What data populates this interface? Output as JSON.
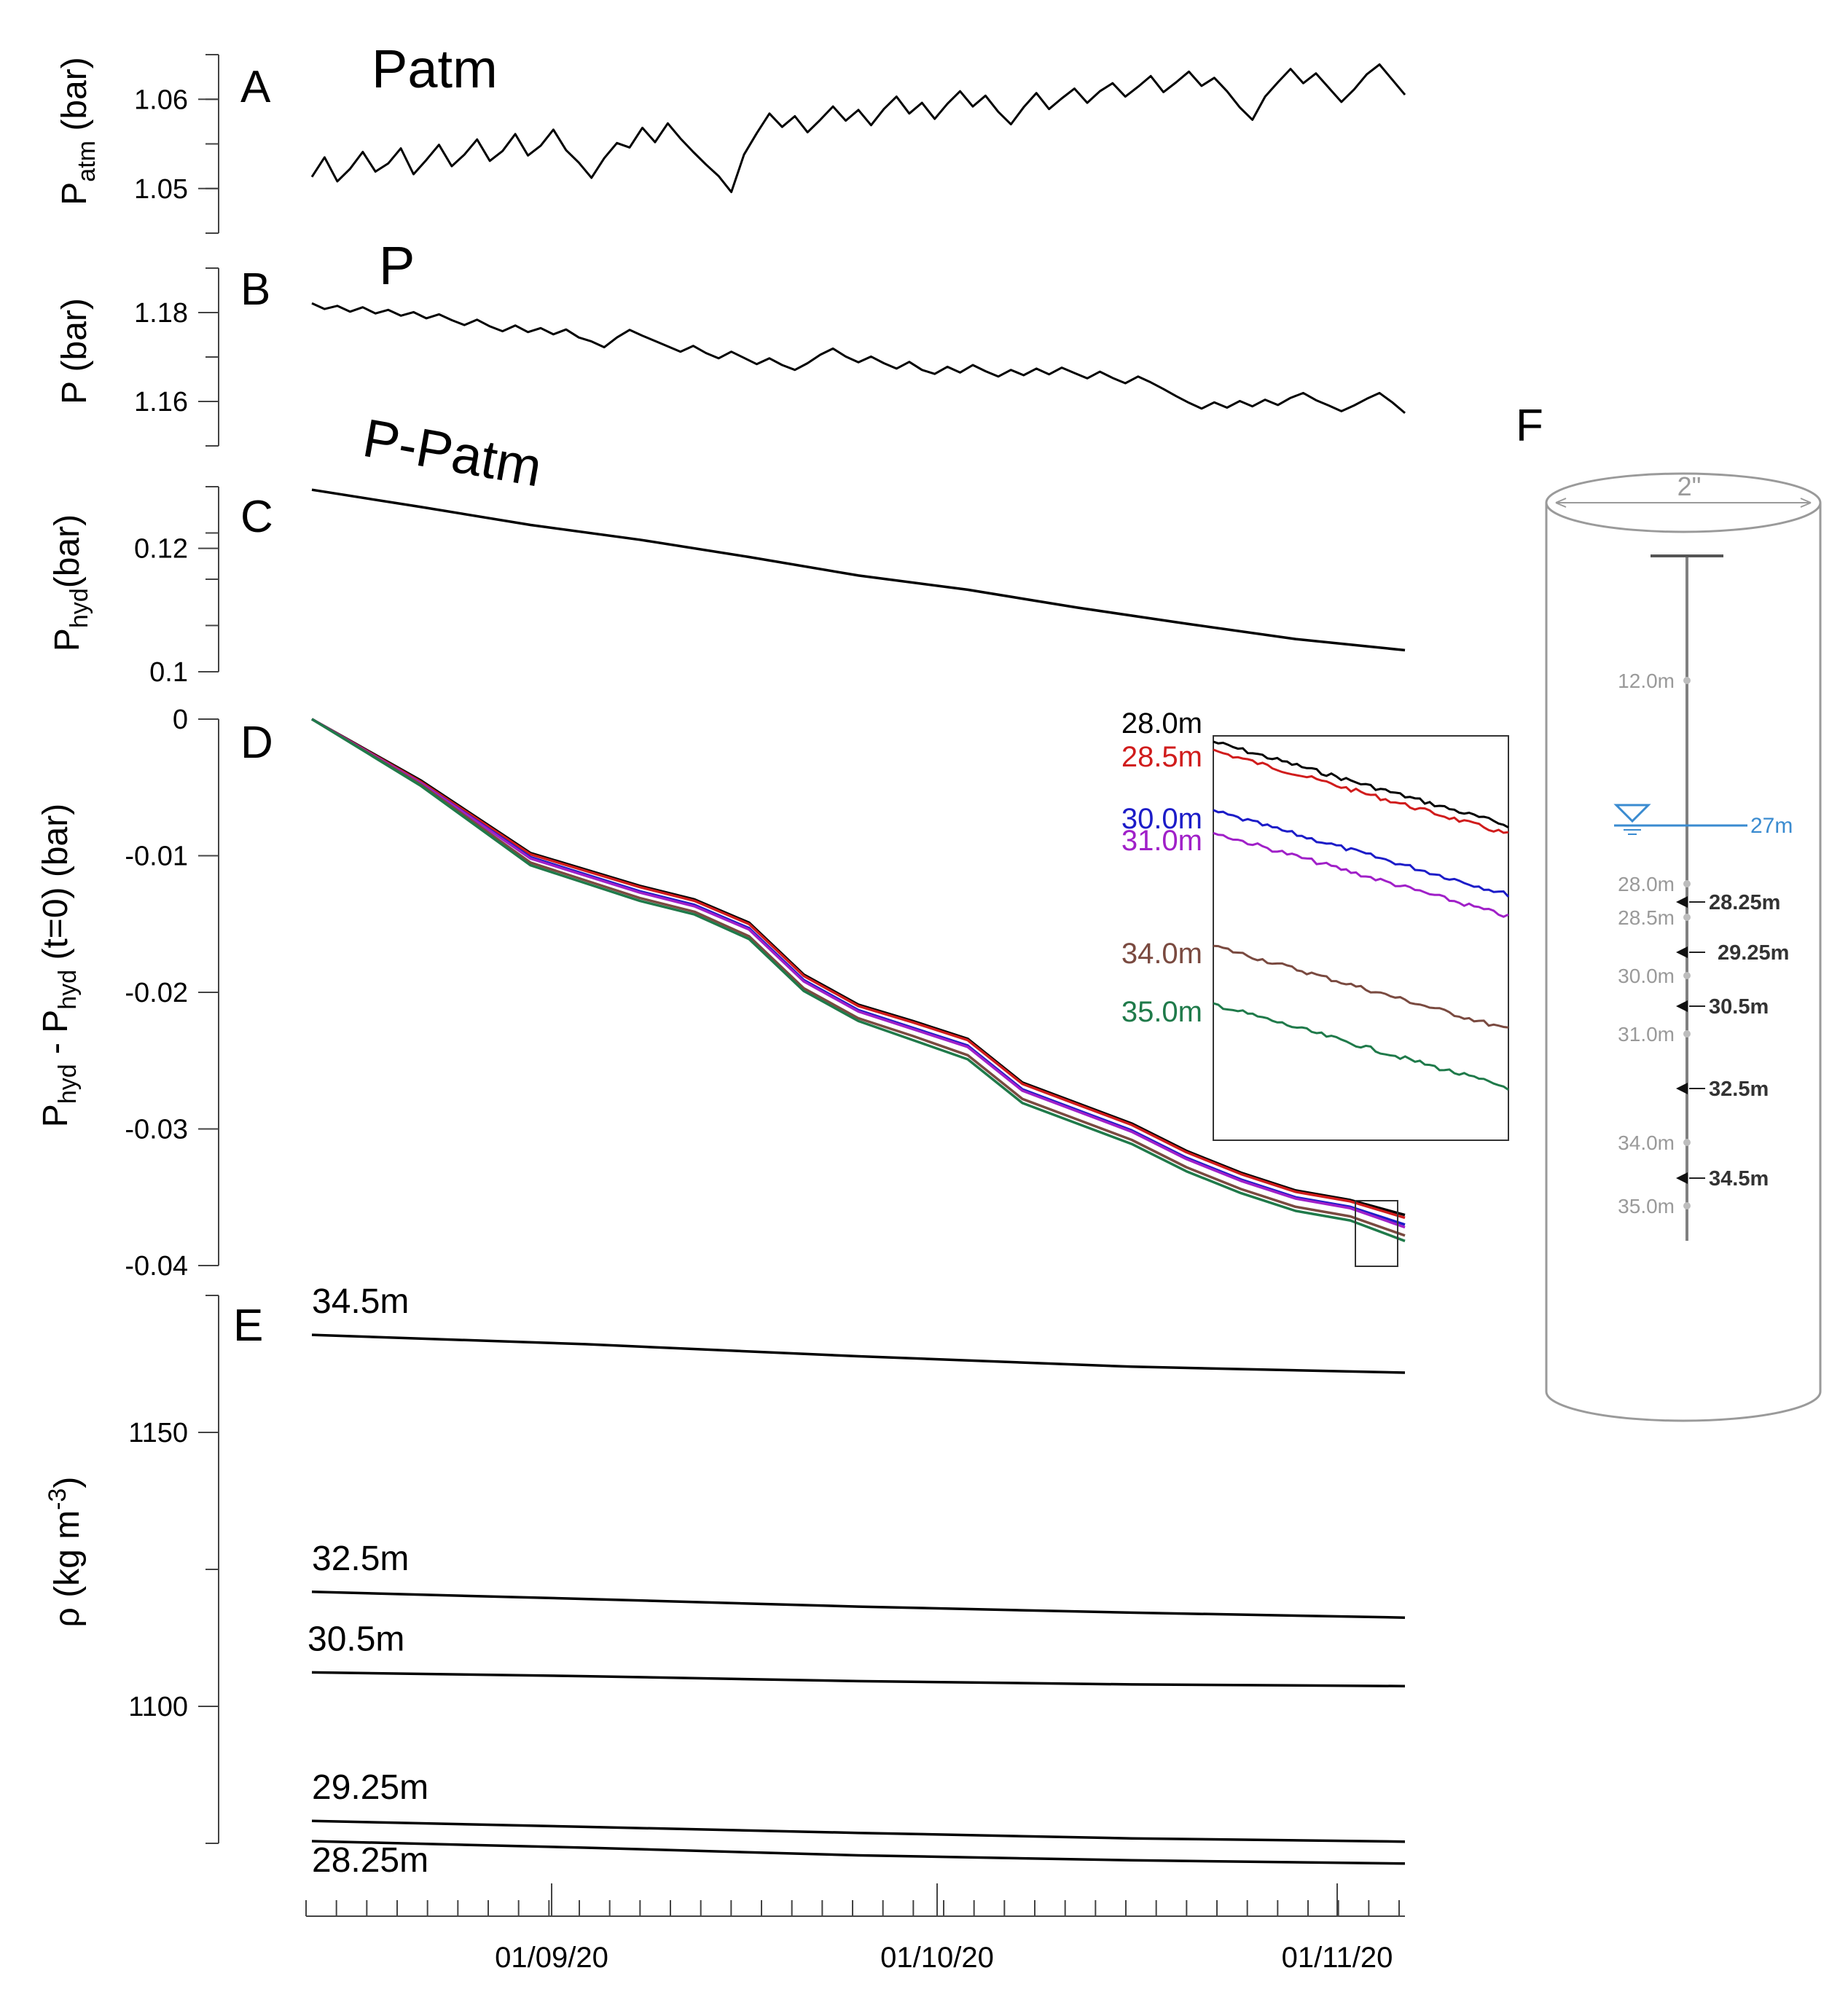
{
  "chart_data": [
    {
      "panel": "A",
      "type": "line",
      "annotation": "Patm",
      "ylabel": {
        "main": "P",
        "sub": "atm",
        "rest": " (bar)"
      },
      "yticks": [
        1.05,
        1.06
      ],
      "ylim": [
        1.045,
        1.065
      ],
      "series": [
        {
          "color": "#000000",
          "values": [
            1.0513,
            1.0535,
            1.0508,
            1.0522,
            1.0541,
            1.0519,
            1.0528,
            1.0545,
            1.0516,
            1.0532,
            1.0549,
            1.0525,
            1.0538,
            1.0555,
            1.0531,
            1.0542,
            1.0561,
            1.0537,
            1.0548,
            1.0566,
            1.0543,
            1.0529,
            1.0512,
            1.0534,
            1.0551,
            1.0546,
            1.0568,
            1.0552,
            1.0573,
            1.0556,
            1.0541,
            1.0527,
            1.0514,
            1.0496,
            1.0538,
            1.0562,
            1.0584,
            1.0569,
            1.0581,
            1.0563,
            1.0577,
            1.0592,
            1.0576,
            1.0588,
            1.0571,
            1.0589,
            1.0603,
            1.0584,
            1.0596,
            1.0578,
            1.0595,
            1.0609,
            1.0592,
            1.0604,
            1.0586,
            1.0572,
            1.0591,
            1.0607,
            1.0589,
            1.0601,
            1.0612,
            1.0596,
            1.0609,
            1.0618,
            1.0603,
            1.0614,
            1.0626,
            1.0608,
            1.0619,
            1.0631,
            1.0615,
            1.0624,
            1.0609,
            1.0591,
            1.0577,
            1.0603,
            1.0619,
            1.0634,
            1.0618,
            1.0629,
            1.0613,
            1.0597,
            1.0611,
            1.0628,
            1.0639,
            1.0622,
            1.0605
          ]
        }
      ],
      "xdomain": [
        0,
        100
      ]
    },
    {
      "panel": "B",
      "type": "line",
      "annotation": "P",
      "ylabel": {
        "main": "P (bar)",
        "sub": "",
        "rest": ""
      },
      "yticks": [
        1.16,
        1.18
      ],
      "ylim": [
        1.15,
        1.19
      ],
      "series": [
        {
          "color": "#000000",
          "values": [
            1.1821,
            1.1808,
            1.1815,
            1.1802,
            1.1812,
            1.1798,
            1.1806,
            1.1793,
            1.1801,
            1.1787,
            1.1796,
            1.1783,
            1.1772,
            1.1784,
            1.1769,
            1.1758,
            1.1771,
            1.1756,
            1.1765,
            1.1751,
            1.1762,
            1.1744,
            1.1735,
            1.1722,
            1.1744,
            1.1761,
            1.1748,
            1.1736,
            1.1724,
            1.1712,
            1.1725,
            1.1709,
            1.1697,
            1.1712,
            1.1698,
            1.1684,
            1.1697,
            1.1682,
            1.1671,
            1.1686,
            1.1705,
            1.1719,
            1.1701,
            1.1688,
            1.1701,
            1.1686,
            1.1674,
            1.1689,
            1.1671,
            1.1662,
            1.1678,
            1.1665,
            1.1682,
            1.1668,
            1.1656,
            1.1671,
            1.1659,
            1.1674,
            1.1661,
            1.1676,
            1.1664,
            1.1652,
            1.1667,
            1.1653,
            1.1641,
            1.1656,
            1.1643,
            1.1628,
            1.1612,
            1.1597,
            1.1584,
            1.1598,
            1.1586,
            1.1601,
            1.1589,
            1.1604,
            1.1592,
            1.1608,
            1.1619,
            1.1603,
            1.1591,
            1.1578,
            1.1591,
            1.1606,
            1.1619,
            1.1598,
            1.1574
          ]
        }
      ],
      "xdomain": [
        0,
        100
      ]
    },
    {
      "panel": "C",
      "type": "line",
      "annotation": "P-Patm",
      "ylabel": {
        "main": "P",
        "sub": "hyd",
        "rest": "(bar)"
      },
      "yticks": [
        0.1,
        0.12
      ],
      "ylim": [
        0.1,
        0.13
      ],
      "series": [
        {
          "color": "#000000",
          "x": [
            0,
            10,
            20,
            30,
            40,
            50,
            60,
            70,
            80,
            90,
            100
          ],
          "values": [
            0.1295,
            0.1267,
            0.1238,
            0.1214,
            0.1186,
            0.1156,
            0.1133,
            0.1104,
            0.1078,
            0.1053,
            0.1035
          ]
        }
      ],
      "xdomain": [
        0,
        100
      ]
    },
    {
      "panel": "D",
      "type": "line",
      "ylabel": {
        "main": "P",
        "sub": "hyd",
        "rest": " - P",
        "sub2": "hyd",
        "rest2": " (t=0) (bar)"
      },
      "yticks": [
        0,
        -0.01,
        -0.02,
        -0.03,
        -0.04
      ],
      "ylim": [
        -0.04,
        0
      ],
      "x": [
        0,
        10,
        20,
        30,
        35,
        40,
        45,
        50,
        55,
        60,
        65,
        70,
        75,
        80,
        85,
        90,
        95,
        100
      ],
      "series": [
        {
          "name": "28.0m",
          "color": "#000000",
          "values": [
            0,
            -0.0045,
            -0.0098,
            -0.0122,
            -0.0132,
            -0.0149,
            -0.0187,
            -0.0209,
            -0.0221,
            -0.0234,
            -0.0266,
            -0.0281,
            -0.0296,
            -0.0316,
            -0.0332,
            -0.0345,
            -0.0352,
            -0.0363
          ]
        },
        {
          "name": "28.5m",
          "color": "#d01c1c",
          "values": [
            0,
            -0.0046,
            -0.0099,
            -0.0123,
            -0.0133,
            -0.015,
            -0.0188,
            -0.021,
            -0.0222,
            -0.0235,
            -0.0267,
            -0.0282,
            -0.0297,
            -0.0317,
            -0.0333,
            -0.0346,
            -0.0353,
            -0.0365
          ]
        },
        {
          "name": "30.0m",
          "color": "#1c1cc8",
          "values": [
            0,
            -0.0047,
            -0.0101,
            -0.0126,
            -0.0136,
            -0.0153,
            -0.0191,
            -0.0213,
            -0.0226,
            -0.0239,
            -0.0271,
            -0.0286,
            -0.0301,
            -0.0321,
            -0.0337,
            -0.035,
            -0.0357,
            -0.037
          ]
        },
        {
          "name": "31.0m",
          "color": "#a020c8",
          "values": [
            0,
            -0.0047,
            -0.0102,
            -0.0127,
            -0.0137,
            -0.0154,
            -0.0192,
            -0.0214,
            -0.0227,
            -0.024,
            -0.0272,
            -0.0287,
            -0.0302,
            -0.0322,
            -0.0338,
            -0.0351,
            -0.0358,
            -0.0372
          ]
        },
        {
          "name": "34.0m",
          "color": "#7a4a40",
          "values": [
            0,
            -0.0048,
            -0.0105,
            -0.0131,
            -0.0141,
            -0.0159,
            -0.0197,
            -0.0219,
            -0.0232,
            -0.0246,
            -0.0278,
            -0.0293,
            -0.0308,
            -0.0328,
            -0.0344,
            -0.0357,
            -0.0364,
            -0.0378
          ]
        },
        {
          "name": "35.0m",
          "color": "#1f7a4a",
          "values": [
            0,
            -0.0049,
            -0.0107,
            -0.0133,
            -0.0143,
            -0.0161,
            -0.0199,
            -0.0221,
            -0.0235,
            -0.0249,
            -0.0281,
            -0.0296,
            -0.0311,
            -0.0331,
            -0.0347,
            -0.036,
            -0.0367,
            -0.0382
          ]
        }
      ],
      "xdomain": [
        0,
        100
      ],
      "inset_labels": [
        "28.0m",
        "28.5m",
        "30.0m",
        "31.0m",
        "34.0m",
        "35.0m"
      ]
    },
    {
      "panel": "E",
      "type": "line",
      "ylabel": {
        "main": "ρ (kg m",
        "sup": "-3",
        "rest": ")"
      },
      "yticks": [
        1100,
        1150
      ],
      "ylim": [
        1075,
        1175
      ],
      "x": [
        0,
        25,
        50,
        75,
        100
      ],
      "series": [
        {
          "name": "34.5m",
          "color": "#000000",
          "values": [
            1167.8,
            1166.1,
            1163.9,
            1162.0,
            1160.9
          ]
        },
        {
          "name": "32.5m",
          "color": "#000000",
          "values": [
            1120.9,
            1119.6,
            1118.2,
            1117.1,
            1116.2
          ]
        },
        {
          "name": "30.5m",
          "color": "#000000",
          "values": [
            1106.2,
            1105.5,
            1104.6,
            1104.0,
            1103.7
          ]
        },
        {
          "name": "29.25m",
          "color": "#000000",
          "values": [
            1079.1,
            1078.0,
            1076.9,
            1075.9,
            1075.3
          ]
        },
        {
          "name": "28.25m",
          "color": "#000000",
          "values": [
            1075.4,
            1074.2,
            1072.8,
            1071.9,
            1071.3
          ]
        }
      ],
      "xdomain": [
        0,
        100
      ]
    }
  ],
  "panel_letters": [
    "A",
    "B",
    "C",
    "D",
    "E",
    "F"
  ],
  "xaxis": {
    "tick_labels": [
      "01/09/20",
      "01/10/20",
      "01/11/20"
    ]
  },
  "well_diagram": {
    "letter": "F",
    "diameter": "2\"",
    "water_level": "27m",
    "water_color": "#3a8bd0",
    "sensor_depths": [
      "12.0m",
      "28.0m",
      "28.5m",
      "30.0m",
      "31.0m",
      "34.0m",
      "35.0m"
    ],
    "probe_depths": [
      "28.25m",
      "29.25m",
      "30.5m",
      "32.5m",
      "34.5m"
    ]
  }
}
